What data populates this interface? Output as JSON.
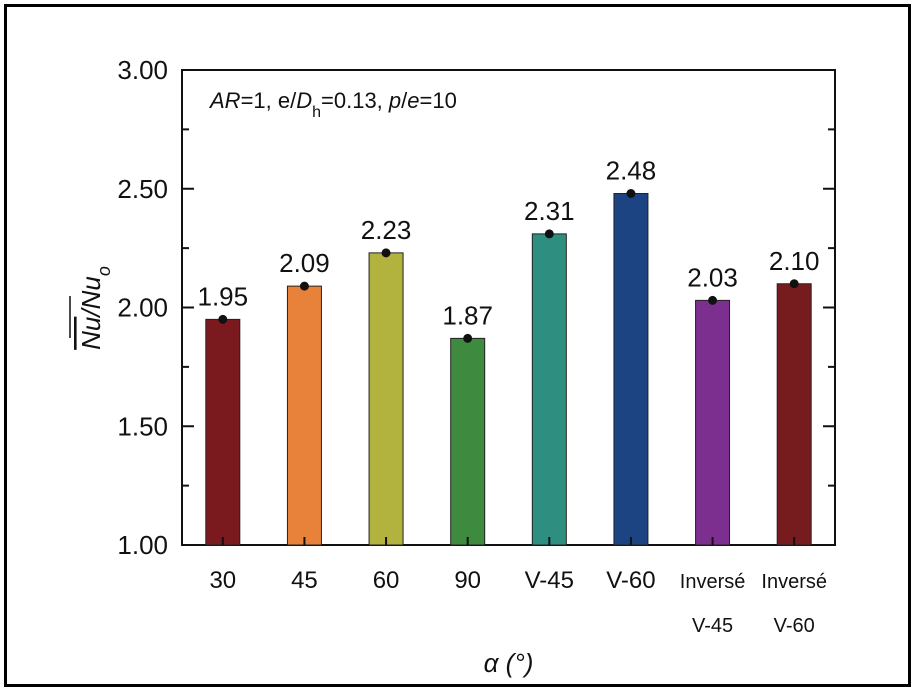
{
  "chart_data": {
    "type": "bar",
    "categories": [
      [
        "30"
      ],
      [
        "45"
      ],
      [
        "60"
      ],
      [
        "90"
      ],
      [
        "V-45"
      ],
      [
        "V-60"
      ],
      [
        "Inversé",
        "V-45"
      ],
      [
        "Inversé",
        "V-60"
      ]
    ],
    "values": [
      1.95,
      2.09,
      2.23,
      1.87,
      2.31,
      2.48,
      2.03,
      2.1
    ],
    "value_labels": [
      "1.95",
      "2.09",
      "2.23",
      "1.87",
      "2.31",
      "2.48",
      "2.03",
      "2.10"
    ],
    "bar_colors": [
      "#7a1a1f",
      "#e8823a",
      "#b2b23e",
      "#3e8a3e",
      "#2e8f80",
      "#1c4482",
      "#7c2f8f",
      "#761c1f"
    ],
    "yticks": [
      "1.00",
      "1.50",
      "2.00",
      "2.50",
      "3.00"
    ],
    "ylim": [
      1.0,
      3.0
    ],
    "ylabel": "Nu/Nuo",
    "xlabel": "α (°)",
    "annotation": "AR=1, e/Dh=0.13, p/e=10",
    "grid": false
  }
}
